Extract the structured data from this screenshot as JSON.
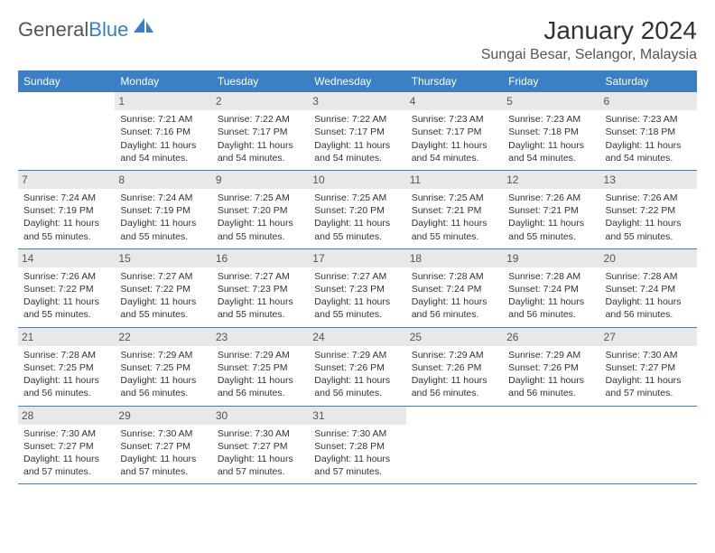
{
  "logo": {
    "text1": "General",
    "text2": "Blue",
    "sail_color": "#3b7fc4"
  },
  "title": "January 2024",
  "location": "Sungai Besar, Selangor, Malaysia",
  "colors": {
    "header_bg": "#3b7fc4",
    "header_fg": "#ffffff",
    "daynum_bg": "#e8e8e8",
    "row_border": "#3b7fc4",
    "text": "#333333"
  },
  "fonts": {
    "title_size": 28,
    "location_size": 16,
    "th_size": 12,
    "cell_size": 10.5
  },
  "weekdays": [
    "Sunday",
    "Monday",
    "Tuesday",
    "Wednesday",
    "Thursday",
    "Friday",
    "Saturday"
  ],
  "grid": {
    "leading_blank": 1,
    "rows": 5,
    "cols": 7
  },
  "days": [
    {
      "n": 1,
      "sunrise": "7:21 AM",
      "sunset": "7:16 PM",
      "daylight": "11 hours and 54 minutes."
    },
    {
      "n": 2,
      "sunrise": "7:22 AM",
      "sunset": "7:17 PM",
      "daylight": "11 hours and 54 minutes."
    },
    {
      "n": 3,
      "sunrise": "7:22 AM",
      "sunset": "7:17 PM",
      "daylight": "11 hours and 54 minutes."
    },
    {
      "n": 4,
      "sunrise": "7:23 AM",
      "sunset": "7:17 PM",
      "daylight": "11 hours and 54 minutes."
    },
    {
      "n": 5,
      "sunrise": "7:23 AM",
      "sunset": "7:18 PM",
      "daylight": "11 hours and 54 minutes."
    },
    {
      "n": 6,
      "sunrise": "7:23 AM",
      "sunset": "7:18 PM",
      "daylight": "11 hours and 54 minutes."
    },
    {
      "n": 7,
      "sunrise": "7:24 AM",
      "sunset": "7:19 PM",
      "daylight": "11 hours and 55 minutes."
    },
    {
      "n": 8,
      "sunrise": "7:24 AM",
      "sunset": "7:19 PM",
      "daylight": "11 hours and 55 minutes."
    },
    {
      "n": 9,
      "sunrise": "7:25 AM",
      "sunset": "7:20 PM",
      "daylight": "11 hours and 55 minutes."
    },
    {
      "n": 10,
      "sunrise": "7:25 AM",
      "sunset": "7:20 PM",
      "daylight": "11 hours and 55 minutes."
    },
    {
      "n": 11,
      "sunrise": "7:25 AM",
      "sunset": "7:21 PM",
      "daylight": "11 hours and 55 minutes."
    },
    {
      "n": 12,
      "sunrise": "7:26 AM",
      "sunset": "7:21 PM",
      "daylight": "11 hours and 55 minutes."
    },
    {
      "n": 13,
      "sunrise": "7:26 AM",
      "sunset": "7:22 PM",
      "daylight": "11 hours and 55 minutes."
    },
    {
      "n": 14,
      "sunrise": "7:26 AM",
      "sunset": "7:22 PM",
      "daylight": "11 hours and 55 minutes."
    },
    {
      "n": 15,
      "sunrise": "7:27 AM",
      "sunset": "7:22 PM",
      "daylight": "11 hours and 55 minutes."
    },
    {
      "n": 16,
      "sunrise": "7:27 AM",
      "sunset": "7:23 PM",
      "daylight": "11 hours and 55 minutes."
    },
    {
      "n": 17,
      "sunrise": "7:27 AM",
      "sunset": "7:23 PM",
      "daylight": "11 hours and 55 minutes."
    },
    {
      "n": 18,
      "sunrise": "7:28 AM",
      "sunset": "7:24 PM",
      "daylight": "11 hours and 56 minutes."
    },
    {
      "n": 19,
      "sunrise": "7:28 AM",
      "sunset": "7:24 PM",
      "daylight": "11 hours and 56 minutes."
    },
    {
      "n": 20,
      "sunrise": "7:28 AM",
      "sunset": "7:24 PM",
      "daylight": "11 hours and 56 minutes."
    },
    {
      "n": 21,
      "sunrise": "7:28 AM",
      "sunset": "7:25 PM",
      "daylight": "11 hours and 56 minutes."
    },
    {
      "n": 22,
      "sunrise": "7:29 AM",
      "sunset": "7:25 PM",
      "daylight": "11 hours and 56 minutes."
    },
    {
      "n": 23,
      "sunrise": "7:29 AM",
      "sunset": "7:25 PM",
      "daylight": "11 hours and 56 minutes."
    },
    {
      "n": 24,
      "sunrise": "7:29 AM",
      "sunset": "7:26 PM",
      "daylight": "11 hours and 56 minutes."
    },
    {
      "n": 25,
      "sunrise": "7:29 AM",
      "sunset": "7:26 PM",
      "daylight": "11 hours and 56 minutes."
    },
    {
      "n": 26,
      "sunrise": "7:29 AM",
      "sunset": "7:26 PM",
      "daylight": "11 hours and 56 minutes."
    },
    {
      "n": 27,
      "sunrise": "7:30 AM",
      "sunset": "7:27 PM",
      "daylight": "11 hours and 57 minutes."
    },
    {
      "n": 28,
      "sunrise": "7:30 AM",
      "sunset": "7:27 PM",
      "daylight": "11 hours and 57 minutes."
    },
    {
      "n": 29,
      "sunrise": "7:30 AM",
      "sunset": "7:27 PM",
      "daylight": "11 hours and 57 minutes."
    },
    {
      "n": 30,
      "sunrise": "7:30 AM",
      "sunset": "7:27 PM",
      "daylight": "11 hours and 57 minutes."
    },
    {
      "n": 31,
      "sunrise": "7:30 AM",
      "sunset": "7:28 PM",
      "daylight": "11 hours and 57 minutes."
    }
  ],
  "labels": {
    "sunrise": "Sunrise:",
    "sunset": "Sunset:",
    "daylight": "Daylight:"
  }
}
